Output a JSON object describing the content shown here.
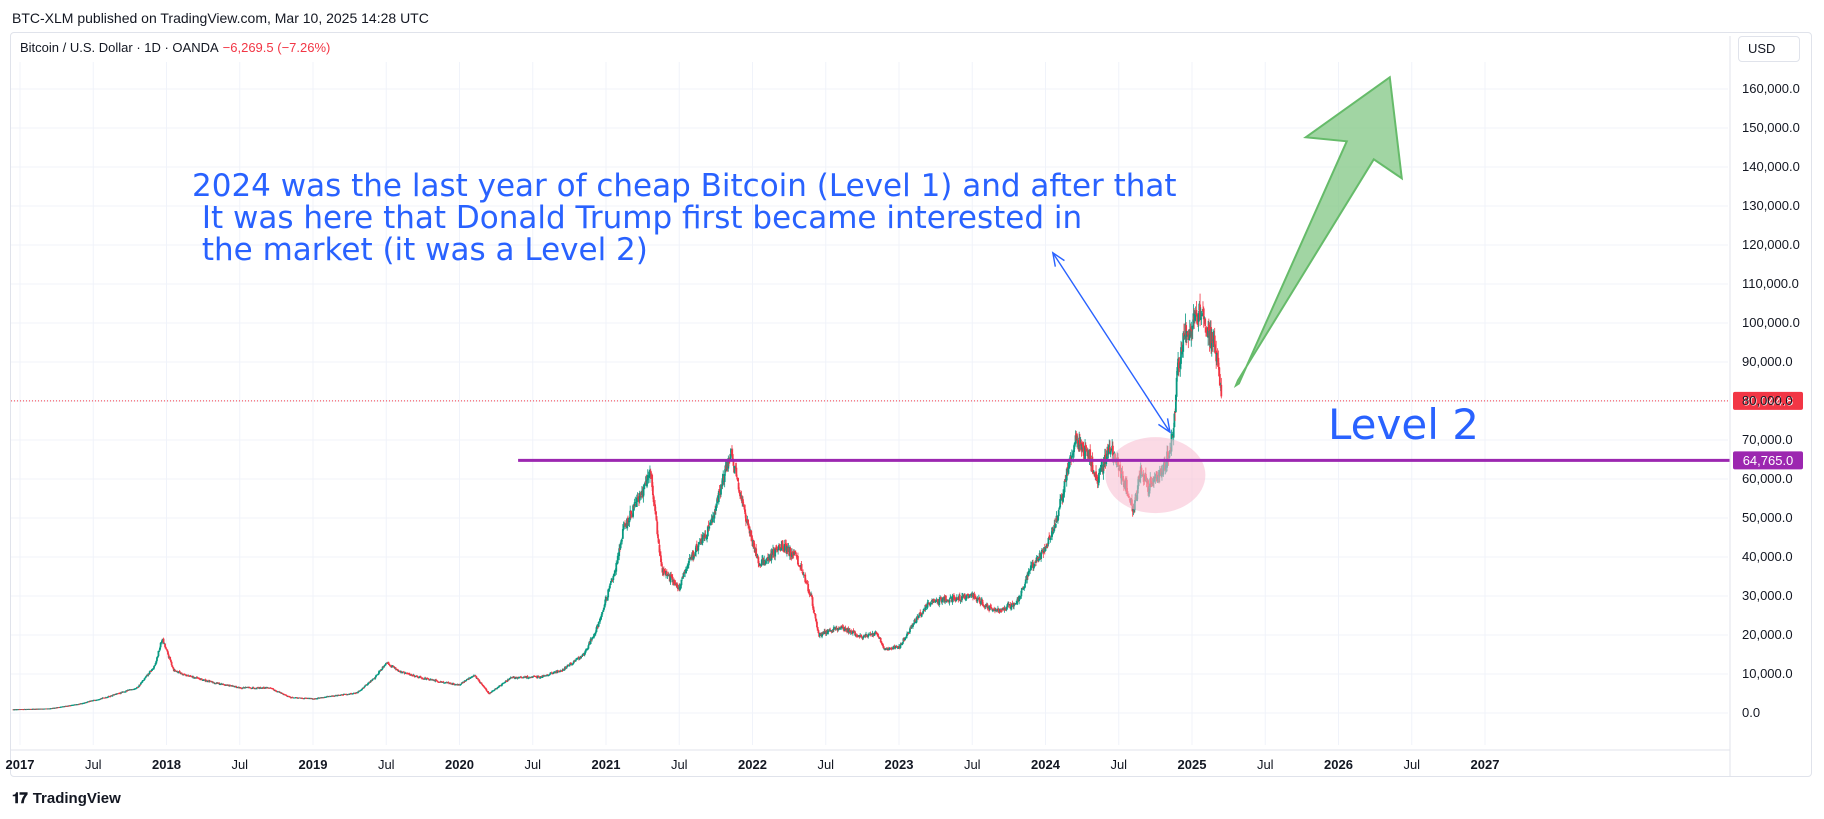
{
  "header": {
    "published": "BTC-XLM published on TradingView.com, Mar 10, 2025 14:28 UTC"
  },
  "legend": {
    "symbol": "Bitcoin / U.S. Dollar · 1D · OANDA",
    "change": "−6,269.5 (−7.26%)"
  },
  "currency": "USD",
  "footer": {
    "brand": "TradingView"
  },
  "annotations": {
    "main_text": "2024 was the last year of cheap Bitcoin (Level 1) and after that\n It was here that Donald Trump first became interested in\n the market (it was a Level 2)",
    "level_label": "Level 2"
  },
  "colors": {
    "up": "#089981",
    "down": "#f23645",
    "level_line": "#9c27b0",
    "arrow_fill": "#81c784",
    "annotation": "#2962ff",
    "highlight": "#f8bbd0"
  },
  "chart_data": {
    "type": "candlestick",
    "symbol": "Bitcoin / U.S. Dollar",
    "interval": "1D",
    "source": "OANDA",
    "y_axis": {
      "min": 0,
      "max": 160000,
      "ticks": [
        0,
        10000,
        20000,
        30000,
        40000,
        50000,
        60000,
        70000,
        80000,
        90000,
        100000,
        110000,
        120000,
        130000,
        140000,
        150000,
        160000
      ],
      "tick_labels": [
        "0.0",
        "10,000.0",
        "20,000.0",
        "30,000.0",
        "40,000.0",
        "50,000.0",
        "60,000.0",
        "70,000.0",
        "80,000.0",
        "90,000.0",
        "100,000.0",
        "110,000.0",
        "120,000.0",
        "130,000.0",
        "140,000.0",
        "150,000.0",
        "160,000.0"
      ]
    },
    "x_axis": {
      "ticks": [
        {
          "t": 2017.0,
          "label": "2017"
        },
        {
          "t": 2017.5,
          "label": "Jul"
        },
        {
          "t": 2018.0,
          "label": "2018"
        },
        {
          "t": 2018.5,
          "label": "Jul"
        },
        {
          "t": 2019.0,
          "label": "2019"
        },
        {
          "t": 2019.5,
          "label": "Jul"
        },
        {
          "t": 2020.0,
          "label": "2020"
        },
        {
          "t": 2020.5,
          "label": "Jul"
        },
        {
          "t": 2021.0,
          "label": "2021"
        },
        {
          "t": 2021.5,
          "label": "Jul"
        },
        {
          "t": 2022.0,
          "label": "2022"
        },
        {
          "t": 2022.5,
          "label": "Jul"
        },
        {
          "t": 2023.0,
          "label": "2023"
        },
        {
          "t": 2023.5,
          "label": "Jul"
        },
        {
          "t": 2024.0,
          "label": "2024"
        },
        {
          "t": 2024.5,
          "label": "Jul"
        },
        {
          "t": 2025.0,
          "label": "2025"
        },
        {
          "t": 2025.5,
          "label": "Jul"
        },
        {
          "t": 2026.0,
          "label": "2026"
        },
        {
          "t": 2026.5,
          "label": "Jul"
        },
        {
          "t": 2027.0,
          "label": "2027"
        }
      ]
    },
    "price_path": [
      [
        2016.95,
        950
      ],
      [
        2017.2,
        1150
      ],
      [
        2017.4,
        2300
      ],
      [
        2017.6,
        4200
      ],
      [
        2017.8,
        6500
      ],
      [
        2017.92,
        12000
      ],
      [
        2017.97,
        19000
      ],
      [
        2018.05,
        11000
      ],
      [
        2018.15,
        9500
      ],
      [
        2018.3,
        8000
      ],
      [
        2018.5,
        6500
      ],
      [
        2018.7,
        6500
      ],
      [
        2018.85,
        4000
      ],
      [
        2019.0,
        3700
      ],
      [
        2019.3,
        5200
      ],
      [
        2019.42,
        9000
      ],
      [
        2019.5,
        13000
      ],
      [
        2019.6,
        10500
      ],
      [
        2019.8,
        8500
      ],
      [
        2020.0,
        7200
      ],
      [
        2020.1,
        9800
      ],
      [
        2020.2,
        5000
      ],
      [
        2020.35,
        9000
      ],
      [
        2020.55,
        9300
      ],
      [
        2020.7,
        11000
      ],
      [
        2020.85,
        15000
      ],
      [
        2020.95,
        23000
      ],
      [
        2021.05,
        35000
      ],
      [
        2021.12,
        47000
      ],
      [
        2021.25,
        57000
      ],
      [
        2021.3,
        63000
      ],
      [
        2021.38,
        37000
      ],
      [
        2021.5,
        32000
      ],
      [
        2021.58,
        40000
      ],
      [
        2021.7,
        47000
      ],
      [
        2021.8,
        60000
      ],
      [
        2021.86,
        67000
      ],
      [
        2021.95,
        50000
      ],
      [
        2022.05,
        38000
      ],
      [
        2022.2,
        43000
      ],
      [
        2022.3,
        40000
      ],
      [
        2022.4,
        30000
      ],
      [
        2022.45,
        20000
      ],
      [
        2022.6,
        22000
      ],
      [
        2022.75,
        19500
      ],
      [
        2022.85,
        20500
      ],
      [
        2022.9,
        16500
      ],
      [
        2023.0,
        16800
      ],
      [
        2023.1,
        23000
      ],
      [
        2023.2,
        28000
      ],
      [
        2023.3,
        29000
      ],
      [
        2023.5,
        30000
      ],
      [
        2023.65,
        26000
      ],
      [
        2023.8,
        28000
      ],
      [
        2023.9,
        37000
      ],
      [
        2024.0,
        42000
      ],
      [
        2024.08,
        50000
      ],
      [
        2024.15,
        62000
      ],
      [
        2024.2,
        70000
      ],
      [
        2024.3,
        66000
      ],
      [
        2024.35,
        60000
      ],
      [
        2024.45,
        68000
      ],
      [
        2024.55,
        58000
      ],
      [
        2024.6,
        52000
      ],
      [
        2024.65,
        62000
      ],
      [
        2024.7,
        58000
      ],
      [
        2024.8,
        62000
      ],
      [
        2024.85,
        68000
      ],
      [
        2024.88,
        75000
      ],
      [
        2024.9,
        88000
      ],
      [
        2024.95,
        97000
      ],
      [
        2025.0,
        99000
      ],
      [
        2025.05,
        104000
      ],
      [
        2025.1,
        97000
      ],
      [
        2025.15,
        95000
      ],
      [
        2025.19,
        86000
      ],
      [
        2025.2,
        80044.8
      ]
    ],
    "last_price": {
      "value": 80044.8,
      "label": "80,044.8"
    },
    "horizontal_level": {
      "value": 64765,
      "label": "64,765.0",
      "from_t": 2020.4
    },
    "highlight": {
      "center_t": 2024.75,
      "center_value": 61000
    },
    "arrow": {
      "from": [
        2025.3,
        84000
      ],
      "to": [
        2026.35,
        163000
      ]
    },
    "pointer_arrow": {
      "from": [
        2024.05,
        118000
      ],
      "to": [
        2024.85,
        72000
      ]
    }
  }
}
